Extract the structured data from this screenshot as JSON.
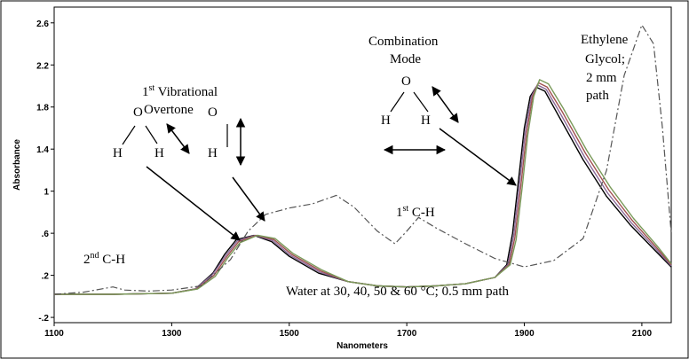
{
  "chart_data": {
    "type": "line",
    "xlabel": "Nanometers",
    "ylabel": "Absorbance",
    "xlim": [
      1100,
      2150
    ],
    "ylim": [
      -0.25,
      2.75
    ],
    "x_ticks": [
      1100,
      1300,
      1500,
      1700,
      1900,
      2100
    ],
    "y_ticks": [
      {
        "value": -0.2,
        "label": "-.2"
      },
      {
        "value": 0.2,
        "label": ".2"
      },
      {
        "value": 0.6,
        "label": ".6"
      },
      {
        "value": 1.0,
        "label": "1"
      },
      {
        "value": 1.4,
        "label": "1.4"
      },
      {
        "value": 1.8,
        "label": "1.8"
      },
      {
        "value": 2.2,
        "label": "2.2"
      },
      {
        "value": 2.6,
        "label": "2.6"
      }
    ],
    "grid": false,
    "series": [
      {
        "style": "solid",
        "color": "#000000",
        "points": [
          [
            1100,
            0.02
          ],
          [
            1200,
            0.02
          ],
          [
            1300,
            0.03
          ],
          [
            1340,
            0.07
          ],
          [
            1370,
            0.22
          ],
          [
            1390,
            0.4
          ],
          [
            1410,
            0.54
          ],
          [
            1440,
            0.58
          ],
          [
            1470,
            0.52
          ],
          [
            1500,
            0.38
          ],
          [
            1550,
            0.22
          ],
          [
            1600,
            0.14
          ],
          [
            1650,
            0.1
          ],
          [
            1700,
            0.09
          ],
          [
            1750,
            0.1
          ],
          [
            1800,
            0.12
          ],
          [
            1850,
            0.18
          ],
          [
            1870,
            0.3
          ],
          [
            1880,
            0.6
          ],
          [
            1890,
            1.1
          ],
          [
            1900,
            1.6
          ],
          [
            1910,
            1.9
          ],
          [
            1920,
            1.99
          ],
          [
            1935,
            1.95
          ],
          [
            1960,
            1.7
          ],
          [
            2000,
            1.3
          ],
          [
            2040,
            0.95
          ],
          [
            2080,
            0.68
          ],
          [
            2120,
            0.45
          ],
          [
            2150,
            0.28
          ]
        ]
      },
      {
        "style": "solid",
        "color": "#8a6a9a",
        "points": [
          [
            1100,
            0.02
          ],
          [
            1200,
            0.02
          ],
          [
            1300,
            0.03
          ],
          [
            1340,
            0.07
          ],
          [
            1370,
            0.21
          ],
          [
            1392,
            0.39
          ],
          [
            1412,
            0.53
          ],
          [
            1442,
            0.58
          ],
          [
            1472,
            0.53
          ],
          [
            1502,
            0.39
          ],
          [
            1552,
            0.23
          ],
          [
            1600,
            0.14
          ],
          [
            1650,
            0.1
          ],
          [
            1700,
            0.09
          ],
          [
            1750,
            0.1
          ],
          [
            1800,
            0.12
          ],
          [
            1850,
            0.18
          ],
          [
            1872,
            0.3
          ],
          [
            1882,
            0.58
          ],
          [
            1892,
            1.08
          ],
          [
            1902,
            1.58
          ],
          [
            1912,
            1.9
          ],
          [
            1922,
            2.01
          ],
          [
            1937,
            1.97
          ],
          [
            1962,
            1.73
          ],
          [
            2002,
            1.33
          ],
          [
            2042,
            0.98
          ],
          [
            2082,
            0.7
          ],
          [
            2122,
            0.46
          ],
          [
            2150,
            0.29
          ]
        ]
      },
      {
        "style": "solid",
        "color": "#a05050",
        "points": [
          [
            1100,
            0.02
          ],
          [
            1200,
            0.02
          ],
          [
            1300,
            0.03
          ],
          [
            1342,
            0.07
          ],
          [
            1372,
            0.2
          ],
          [
            1394,
            0.38
          ],
          [
            1414,
            0.52
          ],
          [
            1444,
            0.58
          ],
          [
            1474,
            0.54
          ],
          [
            1504,
            0.4
          ],
          [
            1554,
            0.24
          ],
          [
            1600,
            0.14
          ],
          [
            1650,
            0.1
          ],
          [
            1700,
            0.09
          ],
          [
            1750,
            0.1
          ],
          [
            1800,
            0.12
          ],
          [
            1850,
            0.18
          ],
          [
            1874,
            0.3
          ],
          [
            1884,
            0.56
          ],
          [
            1894,
            1.05
          ],
          [
            1904,
            1.56
          ],
          [
            1914,
            1.9
          ],
          [
            1924,
            2.03
          ],
          [
            1939,
            1.99
          ],
          [
            1964,
            1.76
          ],
          [
            2004,
            1.36
          ],
          [
            2044,
            1.01
          ],
          [
            2084,
            0.72
          ],
          [
            2124,
            0.47
          ],
          [
            2150,
            0.3
          ]
        ]
      },
      {
        "style": "solid",
        "color": "#7a9a5a",
        "points": [
          [
            1100,
            0.02
          ],
          [
            1200,
            0.02
          ],
          [
            1300,
            0.03
          ],
          [
            1344,
            0.07
          ],
          [
            1374,
            0.19
          ],
          [
            1396,
            0.37
          ],
          [
            1416,
            0.51
          ],
          [
            1446,
            0.58
          ],
          [
            1476,
            0.55
          ],
          [
            1506,
            0.41
          ],
          [
            1556,
            0.25
          ],
          [
            1600,
            0.14
          ],
          [
            1650,
            0.1
          ],
          [
            1700,
            0.09
          ],
          [
            1750,
            0.1
          ],
          [
            1800,
            0.12
          ],
          [
            1850,
            0.18
          ],
          [
            1876,
            0.3
          ],
          [
            1886,
            0.54
          ],
          [
            1896,
            1.02
          ],
          [
            1906,
            1.54
          ],
          [
            1916,
            1.9
          ],
          [
            1926,
            2.06
          ],
          [
            1941,
            2.02
          ],
          [
            1966,
            1.79
          ],
          [
            2006,
            1.39
          ],
          [
            2046,
            1.04
          ],
          [
            2086,
            0.74
          ],
          [
            2126,
            0.48
          ],
          [
            2150,
            0.31
          ]
        ]
      },
      {
        "style": "dashdot",
        "color": "#555555",
        "points": [
          [
            1100,
            0.02
          ],
          [
            1150,
            0.04
          ],
          [
            1200,
            0.09
          ],
          [
            1220,
            0.06
          ],
          [
            1260,
            0.05
          ],
          [
            1300,
            0.06
          ],
          [
            1350,
            0.1
          ],
          [
            1400,
            0.35
          ],
          [
            1430,
            0.62
          ],
          [
            1460,
            0.78
          ],
          [
            1500,
            0.84
          ],
          [
            1540,
            0.88
          ],
          [
            1580,
            0.96
          ],
          [
            1610,
            0.85
          ],
          [
            1650,
            0.62
          ],
          [
            1680,
            0.5
          ],
          [
            1700,
            0.62
          ],
          [
            1720,
            0.75
          ],
          [
            1750,
            0.65
          ],
          [
            1800,
            0.5
          ],
          [
            1850,
            0.36
          ],
          [
            1900,
            0.28
          ],
          [
            1950,
            0.34
          ],
          [
            2000,
            0.55
          ],
          [
            2040,
            1.2
          ],
          [
            2070,
            2.1
          ],
          [
            2100,
            2.58
          ],
          [
            2120,
            2.4
          ],
          [
            2135,
            1.6
          ],
          [
            2150,
            0.6
          ]
        ]
      }
    ],
    "annotations": {
      "first_overtone": {
        "sup": "st",
        "line1_pre": "1",
        "line1_post": " Vibrational",
        "line2": "Overtone"
      },
      "combination": {
        "line1": "Combination",
        "line2": "Mode"
      },
      "ethylene": {
        "line1": "Ethylene",
        "line2": "Glycol;",
        "line3": "2 mm",
        "line4": "path"
      },
      "second_ch": {
        "pre": "2",
        "sup": "nd",
        "post": " C-H"
      },
      "first_ch": {
        "pre": "1",
        "sup": "st",
        "post": " C-H"
      },
      "water": "Water at 30, 40, 50 & 60 °C; 0.5 mm path",
      "atom_o": "O",
      "atom_h": "H"
    }
  }
}
